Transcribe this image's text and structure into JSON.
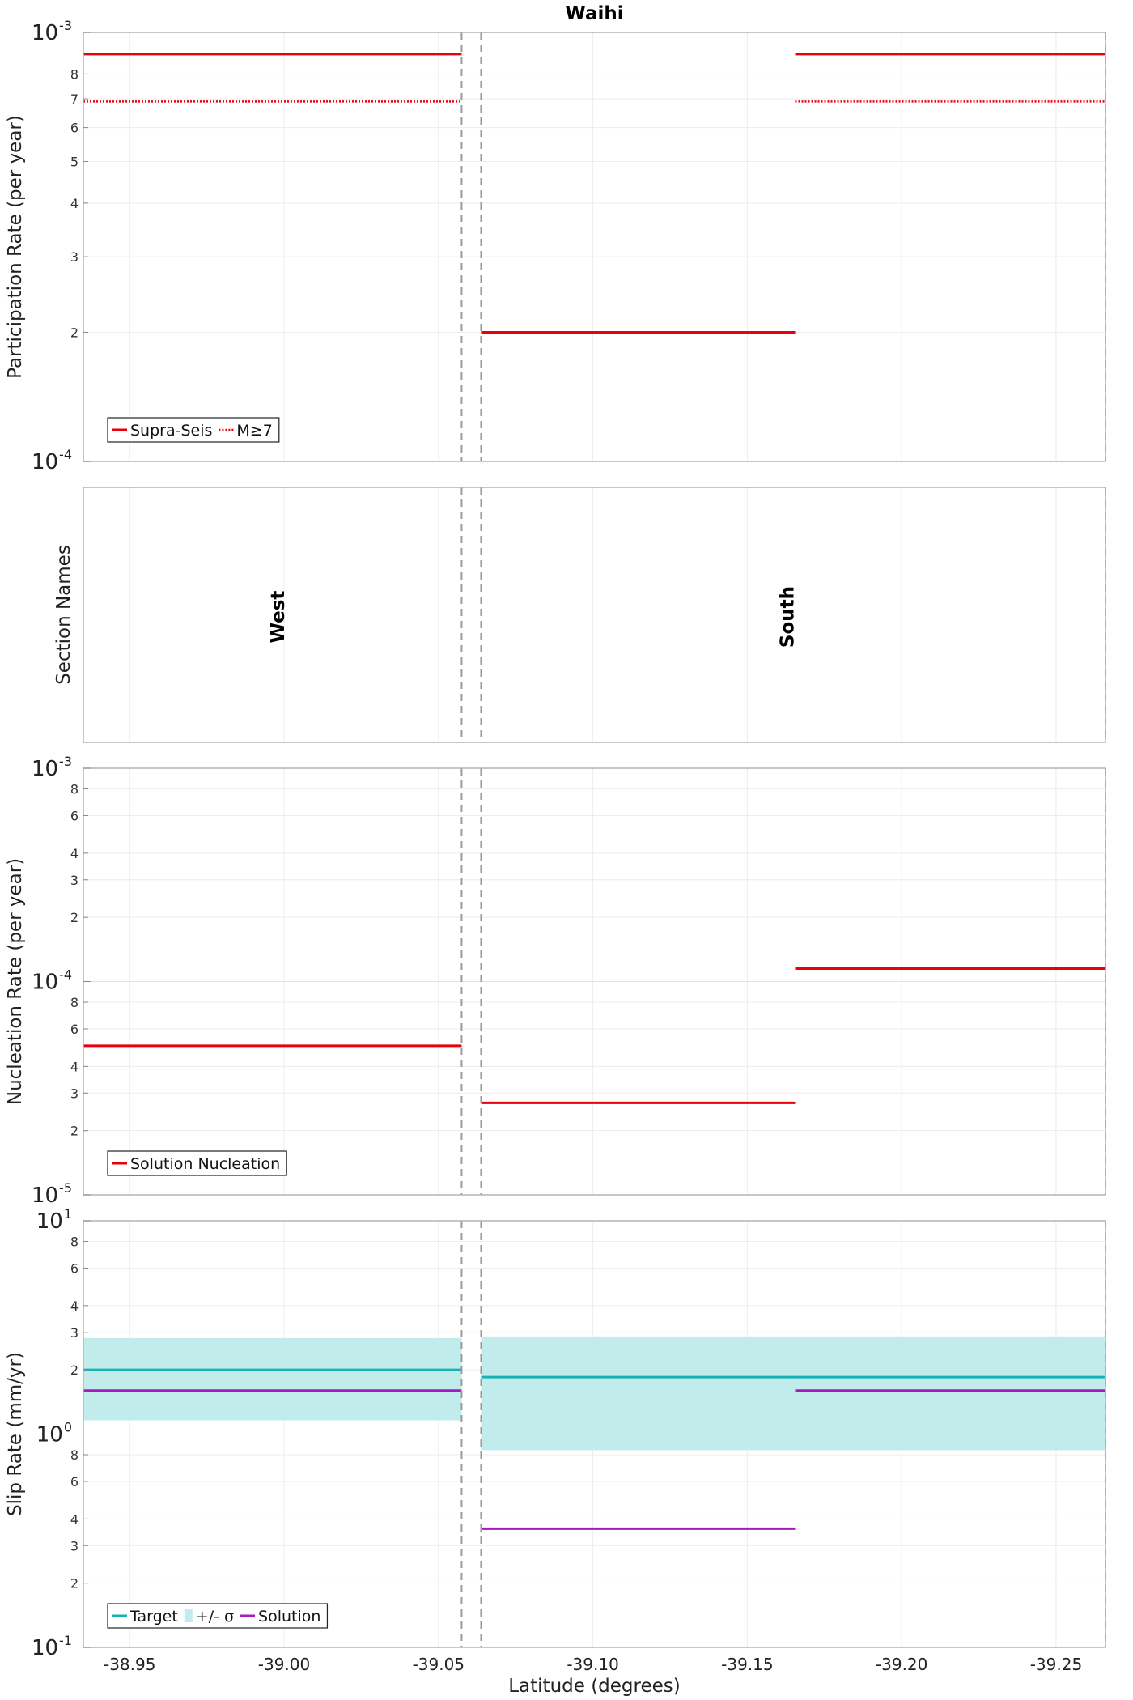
{
  "figure": {
    "title": "Waihi",
    "xlabel": "Latitude (degrees)",
    "xlim": [
      -38.935,
      -39.266
    ],
    "x_ticks": [
      -38.95,
      -39.0,
      -39.05,
      -39.1,
      -39.15,
      -39.2,
      -39.25
    ],
    "x_tick_labels": [
      "-38.95",
      "-39.00",
      "-39.05",
      "-39.10",
      "-39.15",
      "-39.20",
      "-39.25"
    ],
    "section_boundaries": [
      -39.0575,
      -39.0638,
      -39.266
    ],
    "colors": {
      "solution": "#e8000b",
      "target": "#17b3b3",
      "band": "#c2ecec",
      "slip_solution": "#a61bbf",
      "boundary": "#9a9a9a"
    }
  },
  "chart_data": [
    {
      "type": "line",
      "ylabel": "Participation Rate (per year)",
      "yscale": "log",
      "ylim": [
        0.0001,
        0.001
      ],
      "major_ticks": [
        {
          "exp": "-4",
          "value": 0.0001
        },
        {
          "exp": "-3",
          "value": 0.001
        }
      ],
      "minor_ticks": [
        {
          "label": "2",
          "value": 0.0002
        },
        {
          "label": "3",
          "value": 0.0003
        },
        {
          "label": "4",
          "value": 0.0004
        },
        {
          "label": "5",
          "value": 0.0005
        },
        {
          "label": "6",
          "value": 0.0006
        },
        {
          "label": "7",
          "value": 0.0007
        },
        {
          "label": "8",
          "value": 0.0008
        }
      ],
      "series": [
        {
          "name": "Supra-Seis",
          "style": "solid",
          "segments": [
            {
              "x": [
                -38.935,
                -39.0575
              ],
              "y": 0.00089
            },
            {
              "x": [
                -39.0638,
                -39.1655
              ],
              "y": 0.0002
            },
            {
              "x": [
                -39.1655,
                -39.266
              ],
              "y": 0.00089
            }
          ]
        },
        {
          "name": "M≥7",
          "style": "dotted",
          "segments": [
            {
              "x": [
                -38.935,
                -39.0575
              ],
              "y": 0.00069
            },
            {
              "x": [
                -39.1655,
                -39.266
              ],
              "y": 0.00069
            }
          ]
        }
      ],
      "legend": {
        "placement": "bottom-left",
        "entries": [
          "Supra-Seis",
          "M≥7"
        ]
      }
    },
    {
      "type": "table",
      "ylabel": "Section Names",
      "sections": [
        {
          "name": "West",
          "x": -39.0
        },
        {
          "name": "South",
          "x": -39.165
        }
      ]
    },
    {
      "type": "line",
      "ylabel": "Nucleation Rate (per year)",
      "yscale": "log",
      "ylim": [
        1e-05,
        0.001
      ],
      "major_ticks": [
        {
          "exp": "-5",
          "value": 1e-05
        },
        {
          "exp": "-4",
          "value": 0.0001
        },
        {
          "exp": "-3",
          "value": 0.001
        }
      ],
      "minor_ticks": [
        {
          "label": "2",
          "value": 2e-05
        },
        {
          "label": "3",
          "value": 3e-05
        },
        {
          "label": "4",
          "value": 4e-05
        },
        {
          "label": "6",
          "value": 6e-05
        },
        {
          "label": "8",
          "value": 8e-05
        },
        {
          "label": "2",
          "value": 0.0002
        },
        {
          "label": "3",
          "value": 0.0003
        },
        {
          "label": "4",
          "value": 0.0004
        },
        {
          "label": "6",
          "value": 0.0006
        },
        {
          "label": "8",
          "value": 0.0008
        }
      ],
      "series": [
        {
          "name": "Solution Nucleation",
          "style": "solid",
          "segments": [
            {
              "x": [
                -38.935,
                -39.0575
              ],
              "y": 5e-05
            },
            {
              "x": [
                -39.0638,
                -39.1655
              ],
              "y": 2.7e-05
            },
            {
              "x": [
                -39.1655,
                -39.266
              ],
              "y": 0.000115
            }
          ]
        }
      ],
      "legend": {
        "placement": "bottom-left",
        "entries": [
          "Solution Nucleation"
        ]
      }
    },
    {
      "type": "line",
      "ylabel": "Slip Rate (mm/yr)",
      "yscale": "log",
      "ylim": [
        0.1,
        10
      ],
      "major_ticks": [
        {
          "exp": "-1",
          "value": 0.1
        },
        {
          "exp": "0",
          "value": 1
        },
        {
          "exp": "1",
          "value": 10
        }
      ],
      "minor_ticks": [
        {
          "label": "2",
          "value": 0.2
        },
        {
          "label": "3",
          "value": 0.3
        },
        {
          "label": "4",
          "value": 0.4
        },
        {
          "label": "6",
          "value": 0.6
        },
        {
          "label": "8",
          "value": 0.8
        },
        {
          "label": "2",
          "value": 2
        },
        {
          "label": "3",
          "value": 3
        },
        {
          "label": "4",
          "value": 4
        },
        {
          "label": "6",
          "value": 6
        },
        {
          "label": "8",
          "value": 8
        }
      ],
      "bands": [
        {
          "name": "+/- σ",
          "x": [
            -38.935,
            -39.0575
          ],
          "y": [
            1.16,
            2.82
          ]
        },
        {
          "name": "+/- σ",
          "x": [
            -39.0638,
            -39.266
          ],
          "y": [
            0.84,
            2.87
          ]
        }
      ],
      "series": [
        {
          "name": "Target",
          "style": "solid",
          "segments": [
            {
              "x": [
                -38.935,
                -39.0575
              ],
              "y": 2.0
            },
            {
              "x": [
                -39.0638,
                -39.266
              ],
              "y": 1.85
            }
          ]
        },
        {
          "name": "Solution",
          "style": "solid",
          "segments": [
            {
              "x": [
                -38.935,
                -39.0575
              ],
              "y": 1.6
            },
            {
              "x": [
                -39.0638,
                -39.1655
              ],
              "y": 0.36
            },
            {
              "x": [
                -39.1655,
                -39.266
              ],
              "y": 1.6
            }
          ]
        }
      ],
      "legend": {
        "placement": "bottom-left",
        "entries": [
          "Target",
          "+/- σ",
          "Solution"
        ]
      }
    }
  ]
}
